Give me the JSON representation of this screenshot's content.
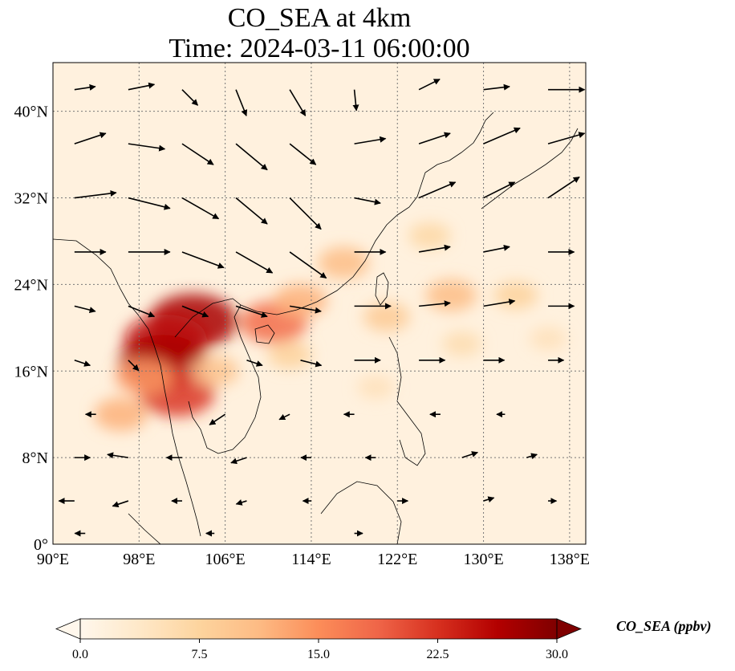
{
  "title_line1": "CO_SEA at 4km",
  "title_line2": "Time: 2024-03-11 06:00:00",
  "map": {
    "lon_range": [
      90,
      139.5
    ],
    "lat_range": [
      0,
      44.5
    ],
    "gridlines": "dotted",
    "lon_ticks": [
      {
        "value": 90,
        "label": "90°E"
      },
      {
        "value": 98,
        "label": "98°E"
      },
      {
        "value": 106,
        "label": "106°E"
      },
      {
        "value": 114,
        "label": "114°E"
      },
      {
        "value": 122,
        "label": "122°E"
      },
      {
        "value": 130,
        "label": "130°E"
      },
      {
        "value": 138,
        "label": "138°E"
      }
    ],
    "lat_ticks": [
      {
        "value": 0,
        "label": "0°"
      },
      {
        "value": 8,
        "label": "8°N"
      },
      {
        "value": 16,
        "label": "16°N"
      },
      {
        "value": 24,
        "label": "24°N"
      },
      {
        "value": 32,
        "label": "32°N"
      },
      {
        "value": 40,
        "label": "40°N"
      }
    ],
    "background_value": 1.5,
    "co_plumes": [
      {
        "lon": 103.0,
        "lat": 20.6,
        "value": 27
      },
      {
        "lon": 100.5,
        "lat": 18.8,
        "value": 25
      },
      {
        "lon": 100.2,
        "lat": 16.8,
        "value": 27
      },
      {
        "lon": 101.5,
        "lat": 14.0,
        "value": 22
      },
      {
        "lon": 98.5,
        "lat": 15.5,
        "value": 14
      },
      {
        "lon": 96.3,
        "lat": 12.0,
        "value": 12
      },
      {
        "lon": 110.5,
        "lat": 20.5,
        "value": 18
      },
      {
        "lon": 105.0,
        "lat": 16.0,
        "value": 10
      },
      {
        "lon": 113.0,
        "lat": 22.5,
        "value": 12
      },
      {
        "lon": 117.0,
        "lat": 26.0,
        "value": 11
      },
      {
        "lon": 121.0,
        "lat": 21.0,
        "value": 9
      },
      {
        "lon": 127.0,
        "lat": 23.0,
        "value": 11
      },
      {
        "lon": 133.0,
        "lat": 23.0,
        "value": 8
      },
      {
        "lon": 125.0,
        "lat": 28.5,
        "value": 7
      },
      {
        "lon": 112.0,
        "lat": 17.5,
        "value": 8
      },
      {
        "lon": 128.0,
        "lat": 18.5,
        "value": 6
      },
      {
        "lon": 120.0,
        "lat": 14.5,
        "value": 5
      },
      {
        "lon": 136.0,
        "lat": 19.0,
        "value": 5
      }
    ],
    "wind_vectors": [
      {
        "lon": 92,
        "lat": 42,
        "u": 2,
        "v": 0.3
      },
      {
        "lon": 97,
        "lat": 42,
        "u": 2.5,
        "v": 0.5
      },
      {
        "lon": 102,
        "lat": 42,
        "u": 1.5,
        "v": -1.5
      },
      {
        "lon": 107,
        "lat": 42,
        "u": 1.0,
        "v": -2.5
      },
      {
        "lon": 112,
        "lat": 42,
        "u": 1.5,
        "v": -2.5
      },
      {
        "lon": 118,
        "lat": 42,
        "u": 0.2,
        "v": -2.0
      },
      {
        "lon": 124,
        "lat": 42,
        "u": 2.0,
        "v": 1.0
      },
      {
        "lon": 130,
        "lat": 42,
        "u": 2.5,
        "v": 0.3
      },
      {
        "lon": 136,
        "lat": 42,
        "u": 3.5,
        "v": 0
      },
      {
        "lon": 92,
        "lat": 37,
        "u": 3.0,
        "v": 1.0
      },
      {
        "lon": 97,
        "lat": 37,
        "u": 3.5,
        "v": -0.5
      },
      {
        "lon": 102,
        "lat": 37,
        "u": 3.0,
        "v": -2.0
      },
      {
        "lon": 107,
        "lat": 37,
        "u": 3.0,
        "v": -2.5
      },
      {
        "lon": 112,
        "lat": 37,
        "u": 2.5,
        "v": -2.0
      },
      {
        "lon": 118,
        "lat": 37,
        "u": 3.0,
        "v": 0.5
      },
      {
        "lon": 124,
        "lat": 37,
        "u": 3.0,
        "v": 1.0
      },
      {
        "lon": 130,
        "lat": 37,
        "u": 3.5,
        "v": 1.5
      },
      {
        "lon": 136,
        "lat": 37,
        "u": 3.5,
        "v": 1.0
      },
      {
        "lon": 92,
        "lat": 32,
        "u": 4.0,
        "v": 0.5
      },
      {
        "lon": 97,
        "lat": 32,
        "u": 4.0,
        "v": -1.0
      },
      {
        "lon": 102,
        "lat": 32,
        "u": 3.5,
        "v": -2.0
      },
      {
        "lon": 107,
        "lat": 32,
        "u": 3.0,
        "v": -2.5
      },
      {
        "lon": 112,
        "lat": 32,
        "u": 3.0,
        "v": -3.0
      },
      {
        "lon": 118,
        "lat": 32,
        "u": 2.5,
        "v": -0.5
      },
      {
        "lon": 124,
        "lat": 32,
        "u": 3.5,
        "v": 1.5
      },
      {
        "lon": 130,
        "lat": 32,
        "u": 3.0,
        "v": 1.5
      },
      {
        "lon": 136,
        "lat": 32,
        "u": 3.0,
        "v": 2.0
      },
      {
        "lon": 92,
        "lat": 27,
        "u": 3.0,
        "v": 0
      },
      {
        "lon": 97,
        "lat": 27,
        "u": 4.0,
        "v": 0
      },
      {
        "lon": 102,
        "lat": 27,
        "u": 4.0,
        "v": -1.5
      },
      {
        "lon": 107,
        "lat": 27,
        "u": 3.5,
        "v": -2.0
      },
      {
        "lon": 112,
        "lat": 27,
        "u": 3.5,
        "v": -2.5
      },
      {
        "lon": 118,
        "lat": 27,
        "u": 3.0,
        "v": 0
      },
      {
        "lon": 124,
        "lat": 27,
        "u": 3.0,
        "v": 0.5
      },
      {
        "lon": 130,
        "lat": 27,
        "u": 2.5,
        "v": 0.5
      },
      {
        "lon": 136,
        "lat": 27,
        "u": 2.5,
        "v": 0
      },
      {
        "lon": 92,
        "lat": 22,
        "u": 2.0,
        "v": -0.5
      },
      {
        "lon": 97,
        "lat": 22,
        "u": 2.5,
        "v": -1.0
      },
      {
        "lon": 102,
        "lat": 22,
        "u": 2.5,
        "v": -1.0
      },
      {
        "lon": 107,
        "lat": 22,
        "u": 3.0,
        "v": -1.0
      },
      {
        "lon": 112,
        "lat": 22,
        "u": 3.0,
        "v": -0.5
      },
      {
        "lon": 118,
        "lat": 22,
        "u": 3.5,
        "v": 0
      },
      {
        "lon": 124,
        "lat": 22,
        "u": 3.0,
        "v": 0.3
      },
      {
        "lon": 130,
        "lat": 22,
        "u": 3.0,
        "v": 0.5
      },
      {
        "lon": 136,
        "lat": 22,
        "u": 2.5,
        "v": 0
      },
      {
        "lon": 92,
        "lat": 17,
        "u": 1.5,
        "v": -0.5
      },
      {
        "lon": 97,
        "lat": 17,
        "u": 1.0,
        "v": -1.0
      },
      {
        "lon": 108,
        "lat": 17,
        "u": 1.5,
        "v": -0.5
      },
      {
        "lon": 113,
        "lat": 17,
        "u": 2.0,
        "v": -0.5
      },
      {
        "lon": 118,
        "lat": 17,
        "u": 2.5,
        "v": 0
      },
      {
        "lon": 124,
        "lat": 17,
        "u": 2.5,
        "v": 0
      },
      {
        "lon": 130,
        "lat": 17,
        "u": 2.0,
        "v": 0
      },
      {
        "lon": 136,
        "lat": 17,
        "u": 1.5,
        "v": 0
      },
      {
        "lon": 94,
        "lat": 12,
        "u": -1.0,
        "v": 0
      },
      {
        "lon": 106,
        "lat": 12,
        "u": -1.5,
        "v": -1.0
      },
      {
        "lon": 112,
        "lat": 12,
        "u": -1.0,
        "v": -0.5
      },
      {
        "lon": 118,
        "lat": 12,
        "u": -1.0,
        "v": 0
      },
      {
        "lon": 126,
        "lat": 12,
        "u": -1.0,
        "v": 0
      },
      {
        "lon": 132,
        "lat": 12,
        "u": -0.8,
        "v": 0
      },
      {
        "lon": 92,
        "lat": 8,
        "u": 1.5,
        "v": 0
      },
      {
        "lon": 97,
        "lat": 8,
        "u": -2.0,
        "v": 0.3
      },
      {
        "lon": 102,
        "lat": 8,
        "u": -1.5,
        "v": 0
      },
      {
        "lon": 108,
        "lat": 8,
        "u": -1.5,
        "v": -0.5
      },
      {
        "lon": 114,
        "lat": 8,
        "u": -1.0,
        "v": 0
      },
      {
        "lon": 120,
        "lat": 8,
        "u": -1.0,
        "v": 0
      },
      {
        "lon": 128,
        "lat": 8,
        "u": 1.5,
        "v": 0.5
      },
      {
        "lon": 134,
        "lat": 8,
        "u": 1.0,
        "v": 0.3
      },
      {
        "lon": 92,
        "lat": 4,
        "u": -1.5,
        "v": 0
      },
      {
        "lon": 97,
        "lat": 4,
        "u": -1.5,
        "v": -0.5
      },
      {
        "lon": 102,
        "lat": 4,
        "u": -1.0,
        "v": 0
      },
      {
        "lon": 108,
        "lat": 4,
        "u": -1.0,
        "v": -0.3
      },
      {
        "lon": 114,
        "lat": 4,
        "u": -0.8,
        "v": 0
      },
      {
        "lon": 122,
        "lat": 4,
        "u": 1.0,
        "v": 0
      },
      {
        "lon": 130,
        "lat": 4,
        "u": 1.0,
        "v": 0.3
      },
      {
        "lon": 136,
        "lat": 4,
        "u": 0.8,
        "v": 0
      },
      {
        "lon": 93,
        "lat": 1,
        "u": -1.0,
        "v": 0
      },
      {
        "lon": 105,
        "lat": 1,
        "u": -0.8,
        "v": 0
      },
      {
        "lon": 118,
        "lat": 1,
        "u": 0.8,
        "v": 0
      }
    ]
  },
  "colorbar": {
    "min": 0.0,
    "max": 30.0,
    "extend": "both",
    "colormap": "OrRd",
    "colors": [
      "#fff7ec",
      "#fee8c8",
      "#fdd49e",
      "#fdbb84",
      "#fc8d59",
      "#ef6548",
      "#d7301f",
      "#b30000",
      "#7f0000"
    ],
    "ticks": [
      {
        "value": 0.0,
        "label": "0.0"
      },
      {
        "value": 7.5,
        "label": "7.5"
      },
      {
        "value": 15.0,
        "label": "15.0"
      },
      {
        "value": 22.5,
        "label": "22.5"
      },
      {
        "value": 30.0,
        "label": "30.0"
      }
    ],
    "label": "CO_SEA (ppbv)"
  }
}
